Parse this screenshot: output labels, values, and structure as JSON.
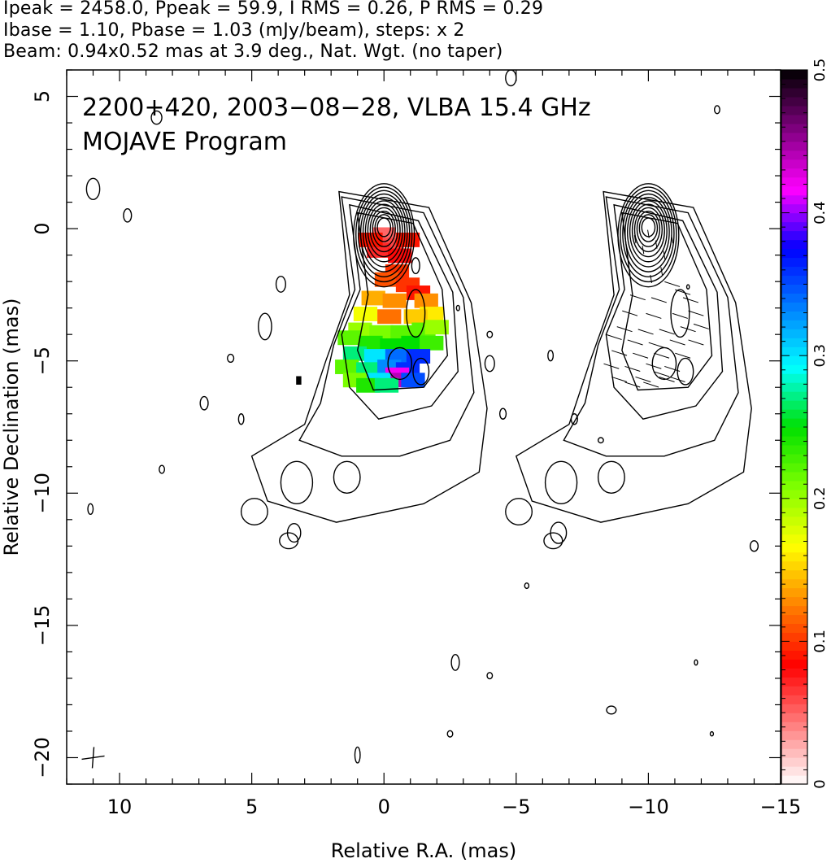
{
  "header": {
    "line1": "Ipeak = 2458.0, Ppeak = 59.9, I RMS = 0.26, P RMS = 0.29",
    "line2": "Ibase = 1.10, Pbase = 1.03 (mJy/beam), steps: x 2",
    "line3": "Beam: 0.94x0.52 mas at 3.9 deg., Nat. Wgt. (no taper)"
  },
  "chart_data": {
    "type": "heatmap",
    "annotation_line1": "2200+420, 2003−08−28, VLBA 15.4 GHz",
    "annotation_line2": "MOJAVE Program",
    "xlabel": "Relative R.A. (mas)",
    "ylabel": "Relative Declination (mas)",
    "xlim": [
      12,
      -15
    ],
    "ylim": [
      -21,
      6
    ],
    "xticks": [
      10,
      5,
      0,
      -5,
      -10,
      -15
    ],
    "xtick_labels": [
      "10",
      "5",
      "0",
      "−5",
      "−10",
      "−15"
    ],
    "yticks": [
      5,
      0,
      -5,
      -10,
      -15,
      -20
    ],
    "ytick_labels": [
      "5",
      "0",
      "−5",
      "−10",
      "−15",
      "−20"
    ],
    "colorbar": {
      "range": [
        0,
        0.5
      ],
      "ticks": [
        0,
        0.1,
        0.2,
        0.3,
        0.4,
        0.5
      ],
      "tick_labels": [
        "0",
        "0.1",
        "0.2",
        "0.3",
        "0.4",
        "0.5"
      ],
      "colors": [
        "#ffffff",
        "#ff7f7f",
        "#ff0000",
        "#ff8000",
        "#ffff00",
        "#80ff00",
        "#00e000",
        "#00ffff",
        "#0080ff",
        "#0000ff",
        "#ff00ff",
        "#800080",
        "#000000"
      ]
    },
    "beam_marker_position": [
      11,
      -20
    ],
    "core_position": [
      0,
      0
    ],
    "map_offset_ra": -10,
    "polarization_pixels": [
      {
        "ra": 0.0,
        "dec": -0.2,
        "v": 0.05
      },
      {
        "ra": -0.3,
        "dec": -0.6,
        "v": 0.06
      },
      {
        "ra": 0.2,
        "dec": -0.8,
        "v": 0.07
      },
      {
        "ra": -0.6,
        "dec": -1.0,
        "v": 0.08
      },
      {
        "ra": -0.9,
        "dec": -0.4,
        "v": 0.09
      },
      {
        "ra": -0.5,
        "dec": -1.6,
        "v": 0.1
      },
      {
        "ra": -0.1,
        "dec": -1.9,
        "v": 0.11
      },
      {
        "ra": -0.9,
        "dec": -2.1,
        "v": 0.1
      },
      {
        "ra": -1.3,
        "dec": -2.4,
        "v": 0.09
      },
      {
        "ra": 0.4,
        "dec": -2.6,
        "v": 0.14
      },
      {
        "ra": -0.4,
        "dec": -2.7,
        "v": 0.13
      },
      {
        "ra": -1.6,
        "dec": -2.7,
        "v": 0.13
      },
      {
        "ra": -1.8,
        "dec": -3.2,
        "v": 0.16
      },
      {
        "ra": 0.7,
        "dec": -3.2,
        "v": 0.17
      },
      {
        "ra": -0.2,
        "dec": -3.3,
        "v": 0.12
      },
      {
        "ra": -1.2,
        "dec": -3.3,
        "v": 0.15
      },
      {
        "ra": 0.9,
        "dec": -3.8,
        "v": 0.2
      },
      {
        "ra": 0.1,
        "dec": -3.9,
        "v": 0.21
      },
      {
        "ra": -0.7,
        "dec": -3.9,
        "v": 0.22
      },
      {
        "ra": -1.5,
        "dec": -3.8,
        "v": 0.22
      },
      {
        "ra": -2.0,
        "dec": -3.7,
        "v": 0.2
      },
      {
        "ra": 1.3,
        "dec": -4.1,
        "v": 0.22
      },
      {
        "ra": 0.5,
        "dec": -4.3,
        "v": 0.24
      },
      {
        "ra": -0.3,
        "dec": -4.4,
        "v": 0.25
      },
      {
        "ra": -1.1,
        "dec": -4.3,
        "v": 0.25
      },
      {
        "ra": -1.8,
        "dec": -4.3,
        "v": 0.23
      },
      {
        "ra": 1.1,
        "dec": -4.7,
        "v": 0.27
      },
      {
        "ra": 0.3,
        "dec": -4.8,
        "v": 0.3
      },
      {
        "ra": -0.5,
        "dec": -4.8,
        "v": 0.34
      },
      {
        "ra": -1.3,
        "dec": -4.8,
        "v": 0.36
      },
      {
        "ra": 1.4,
        "dec": -5.2,
        "v": 0.22
      },
      {
        "ra": 0.6,
        "dec": -5.3,
        "v": 0.27
      },
      {
        "ra": -0.2,
        "dec": -5.2,
        "v": 0.33
      },
      {
        "ra": -0.9,
        "dec": -5.3,
        "v": 0.36
      },
      {
        "ra": -0.5,
        "dec": -5.5,
        "v": 0.42
      },
      {
        "ra": -0.7,
        "dec": -5.7,
        "v": 0.44
      },
      {
        "ra": 1.1,
        "dec": -5.7,
        "v": 0.21
      },
      {
        "ra": 0.2,
        "dec": -5.7,
        "v": 0.3
      },
      {
        "ra": -1.1,
        "dec": -5.7,
        "v": 0.35
      },
      {
        "ra": 0.6,
        "dec": -5.9,
        "v": 0.24
      },
      {
        "ra": -0.1,
        "dec": -5.9,
        "v": 0.27
      },
      {
        "ra": 0.5,
        "dec": -0.4,
        "v": 0.09
      }
    ]
  }
}
